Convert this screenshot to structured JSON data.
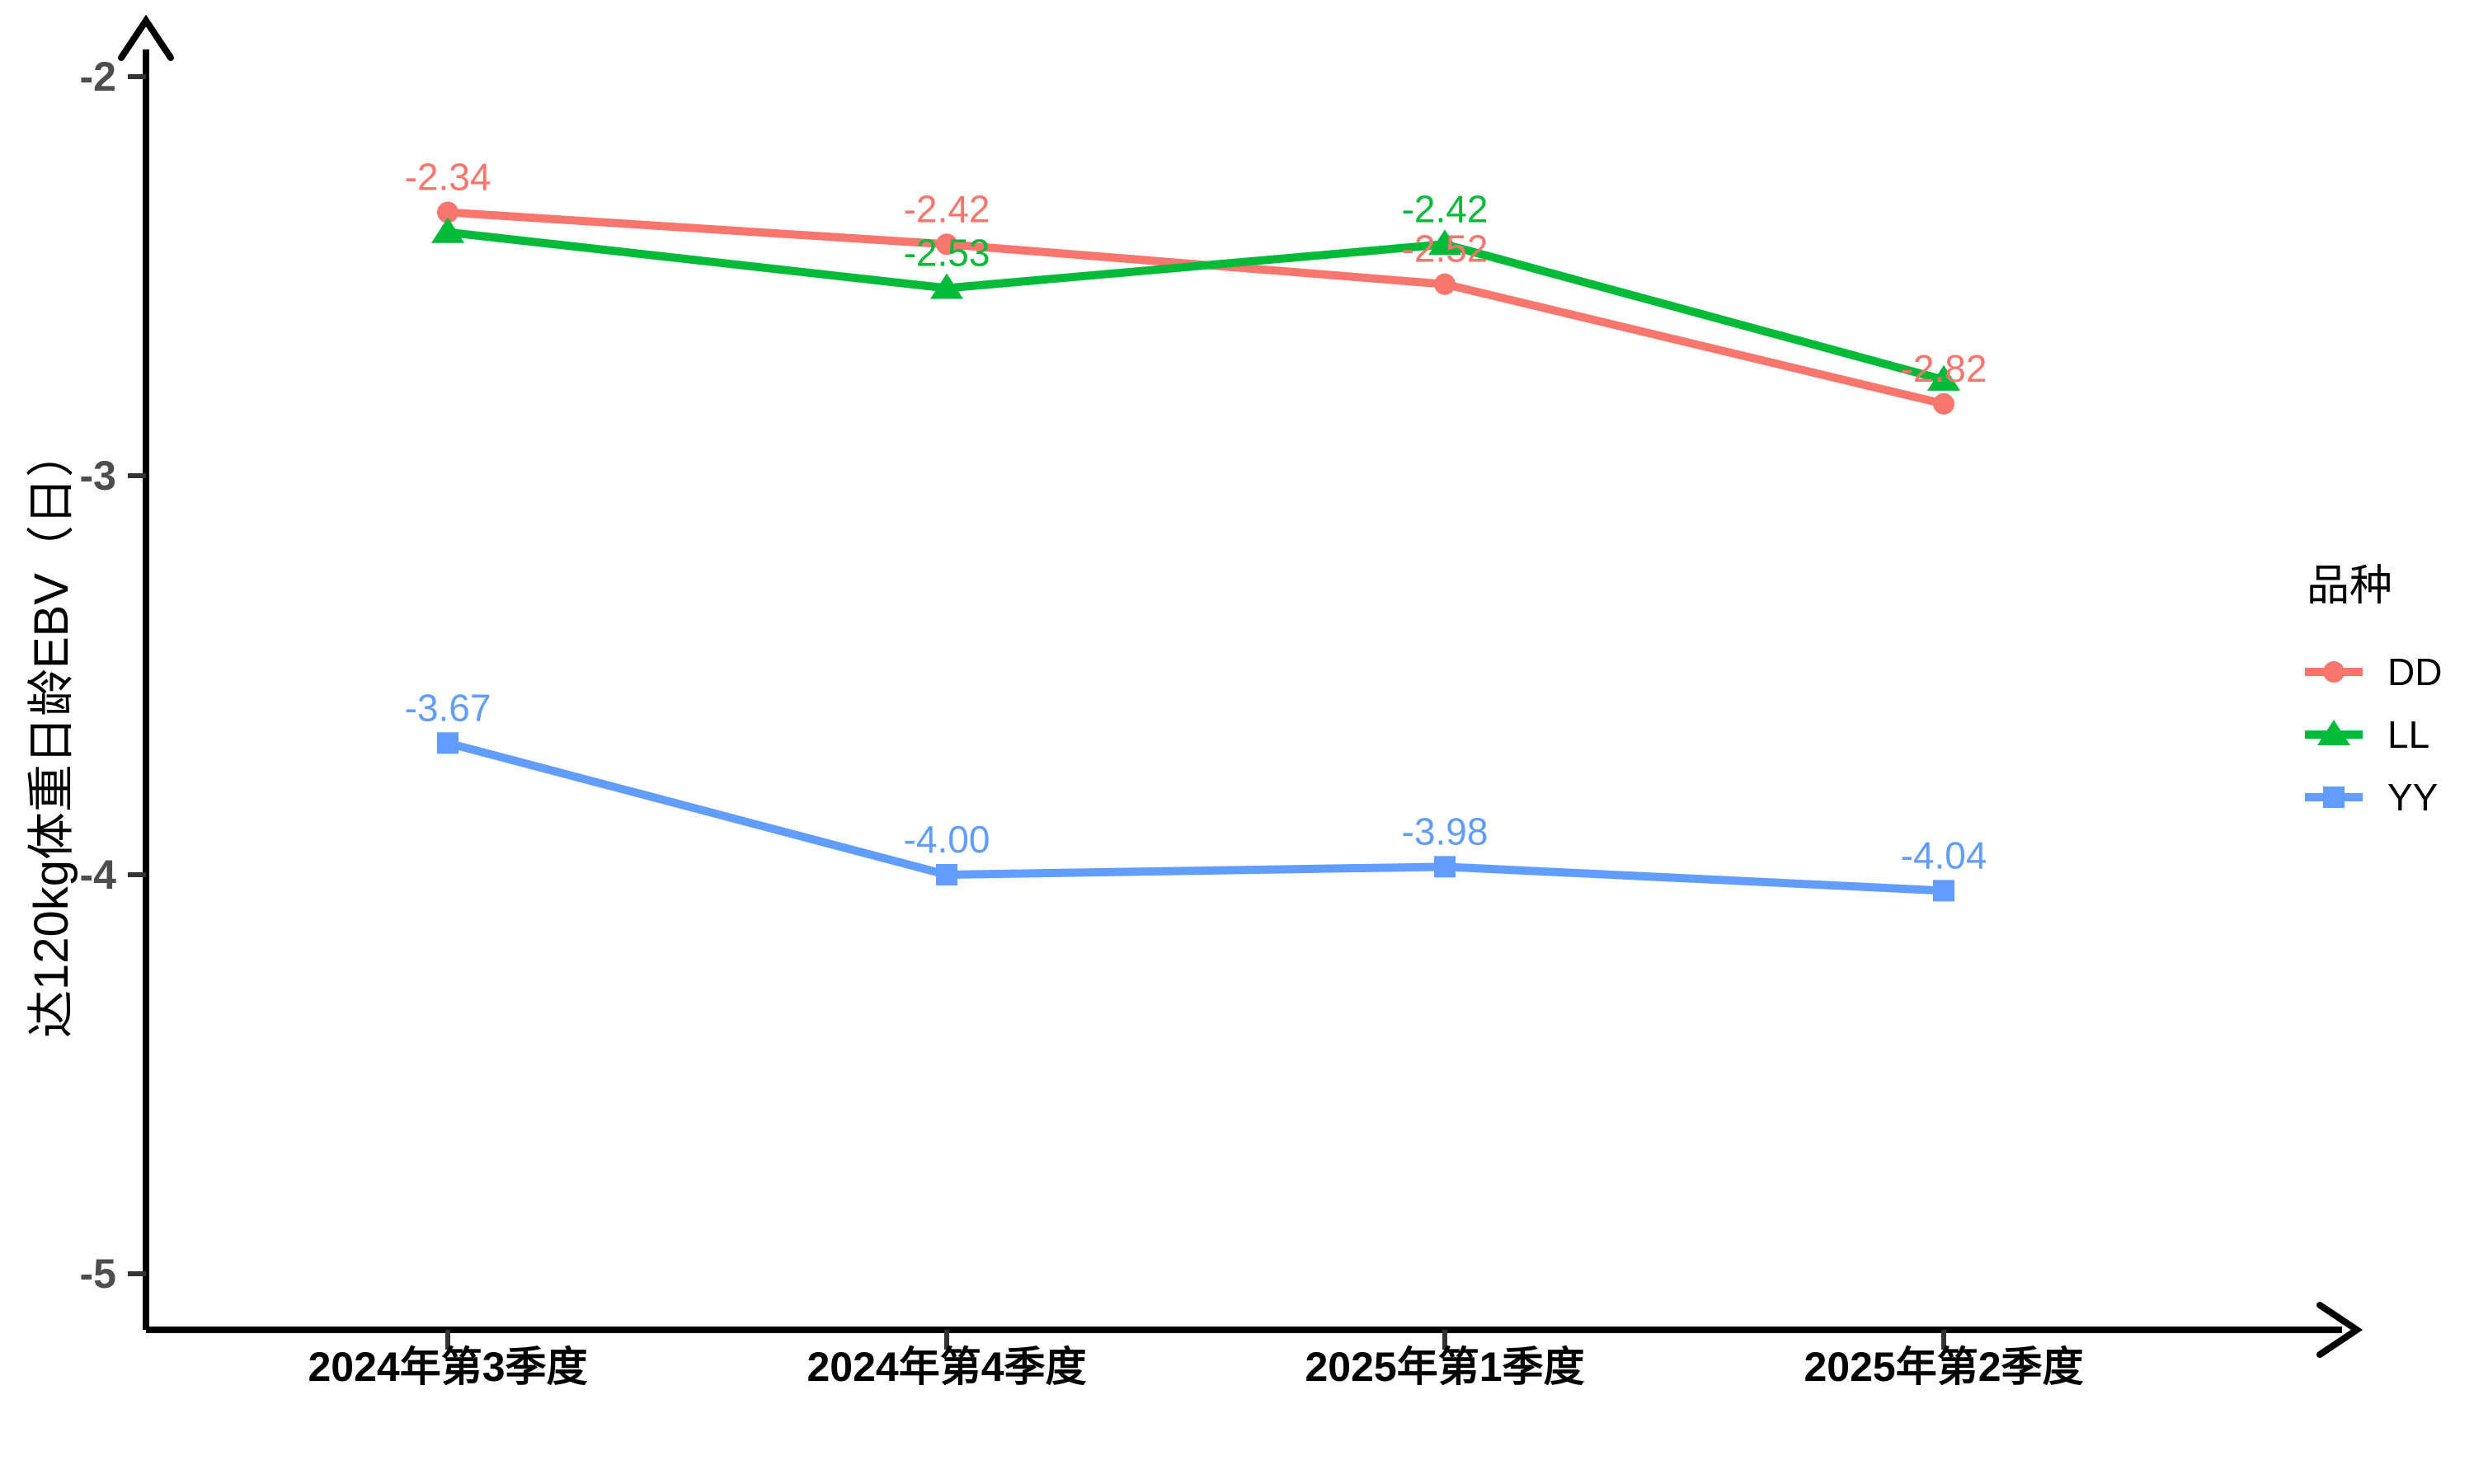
{
  "chart_data": {
    "type": "line",
    "title": "",
    "legend_title": "品种",
    "legend_position": "right",
    "ylabel": "达120kg体重日龄EBV（日）",
    "xlabel": "",
    "grid": false,
    "categories": [
      "2024年第3季度",
      "2024年第4季度",
      "2025年第1季度",
      "2025年第2季度"
    ],
    "yticks": [
      -2,
      -3,
      -4,
      -5
    ],
    "ylim": [
      -5.25,
      -1.75
    ],
    "axis_color": "#000000",
    "tick_color": "#333333",
    "tick_label_color": "#4D4D4D",
    "x_label_color": "#000000",
    "series": [
      {
        "name": "DD",
        "color": "#F8766D",
        "marker": "circle",
        "values": [
          -2.34,
          -2.42,
          -2.52,
          -2.82
        ],
        "labels": [
          "-2.34",
          "-2.42",
          "-2.52",
          "-2.82"
        ]
      },
      {
        "name": "LL",
        "color": "#00BA38",
        "marker": "triangle",
        "values": [
          -2.39,
          -2.53,
          -2.42,
          -2.76
        ],
        "labels": [
          null,
          "-2.53",
          "-2.42",
          null
        ]
      },
      {
        "name": "YY",
        "color": "#619CFF",
        "marker": "square",
        "values": [
          -3.67,
          -4.0,
          -3.98,
          -4.04
        ],
        "labels": [
          "-3.67",
          "-4.00",
          "-3.98",
          "-4.04"
        ]
      }
    ]
  }
}
